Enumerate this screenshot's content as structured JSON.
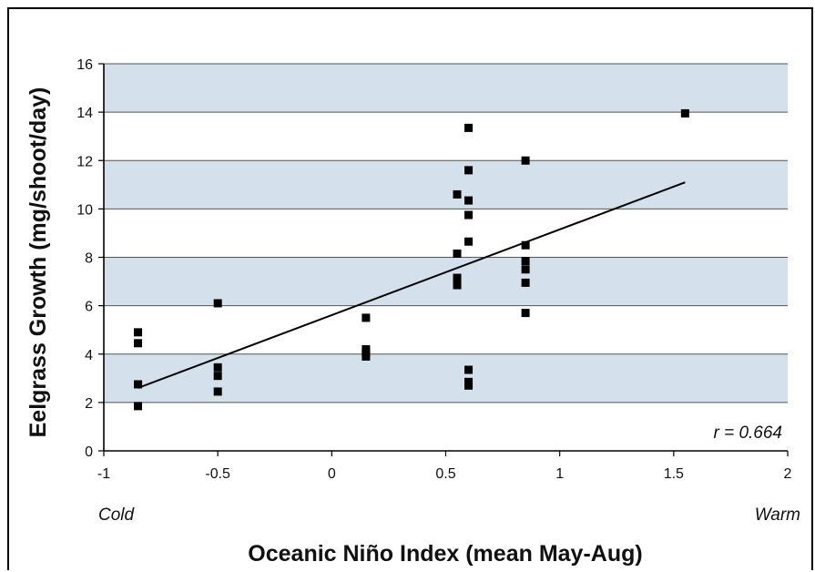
{
  "chart_data": {
    "type": "scatter",
    "title": "",
    "xlabel": "Oceanic Niño Index (mean May-Aug)",
    "ylabel": "Eelgrass Growth (mg/shoot/day)",
    "xlim": [
      -1,
      2
    ],
    "ylim": [
      0,
      16
    ],
    "x_ticks": [
      "-1",
      "-0.5",
      "0",
      "0.5",
      "1",
      "1.5",
      "2"
    ],
    "y_ticks": [
      "0",
      "2",
      "4",
      "6",
      "8",
      "10",
      "12",
      "14",
      "16"
    ],
    "x_tick_values": [
      -1,
      -0.5,
      0,
      0.5,
      1,
      1.5,
      2
    ],
    "y_tick_values": [
      0,
      2,
      4,
      6,
      8,
      10,
      12,
      14,
      16
    ],
    "x_annotation_left": "Cold",
    "x_annotation_right": "Warm",
    "correlation_label": "r = 0.664",
    "band_color": "#d4e1ec",
    "point_color": "#000000",
    "grid": "horizontal alternating bands",
    "series": [
      {
        "points": [
          {
            "x": -0.85,
            "y": 4.9
          },
          {
            "x": -0.85,
            "y": 4.45
          },
          {
            "x": -0.85,
            "y": 2.75
          },
          {
            "x": -0.85,
            "y": 1.85
          },
          {
            "x": -0.5,
            "y": 6.1
          },
          {
            "x": -0.5,
            "y": 3.45
          },
          {
            "x": -0.5,
            "y": 3.1
          },
          {
            "x": -0.5,
            "y": 2.45
          },
          {
            "x": 0.15,
            "y": 5.5
          },
          {
            "x": 0.15,
            "y": 4.2
          },
          {
            "x": 0.15,
            "y": 4.05
          },
          {
            "x": 0.15,
            "y": 3.9
          },
          {
            "x": 0.55,
            "y": 10.6
          },
          {
            "x": 0.55,
            "y": 8.15
          },
          {
            "x": 0.55,
            "y": 7.15
          },
          {
            "x": 0.55,
            "y": 6.95
          },
          {
            "x": 0.55,
            "y": 6.85
          },
          {
            "x": 0.6,
            "y": 13.35
          },
          {
            "x": 0.6,
            "y": 11.6
          },
          {
            "x": 0.6,
            "y": 10.35
          },
          {
            "x": 0.6,
            "y": 9.75
          },
          {
            "x": 0.6,
            "y": 8.65
          },
          {
            "x": 0.6,
            "y": 3.35
          },
          {
            "x": 0.6,
            "y": 2.85
          },
          {
            "x": 0.6,
            "y": 2.7
          },
          {
            "x": 0.85,
            "y": 12.0
          },
          {
            "x": 0.85,
            "y": 8.5
          },
          {
            "x": 0.85,
            "y": 7.85
          },
          {
            "x": 0.85,
            "y": 7.5
          },
          {
            "x": 0.85,
            "y": 6.95
          },
          {
            "x": 0.85,
            "y": 5.7
          },
          {
            "x": 1.55,
            "y": 13.95
          }
        ]
      }
    ],
    "trendline": {
      "x": [
        -0.85,
        1.55
      ],
      "y": [
        2.6,
        11.1
      ]
    }
  }
}
